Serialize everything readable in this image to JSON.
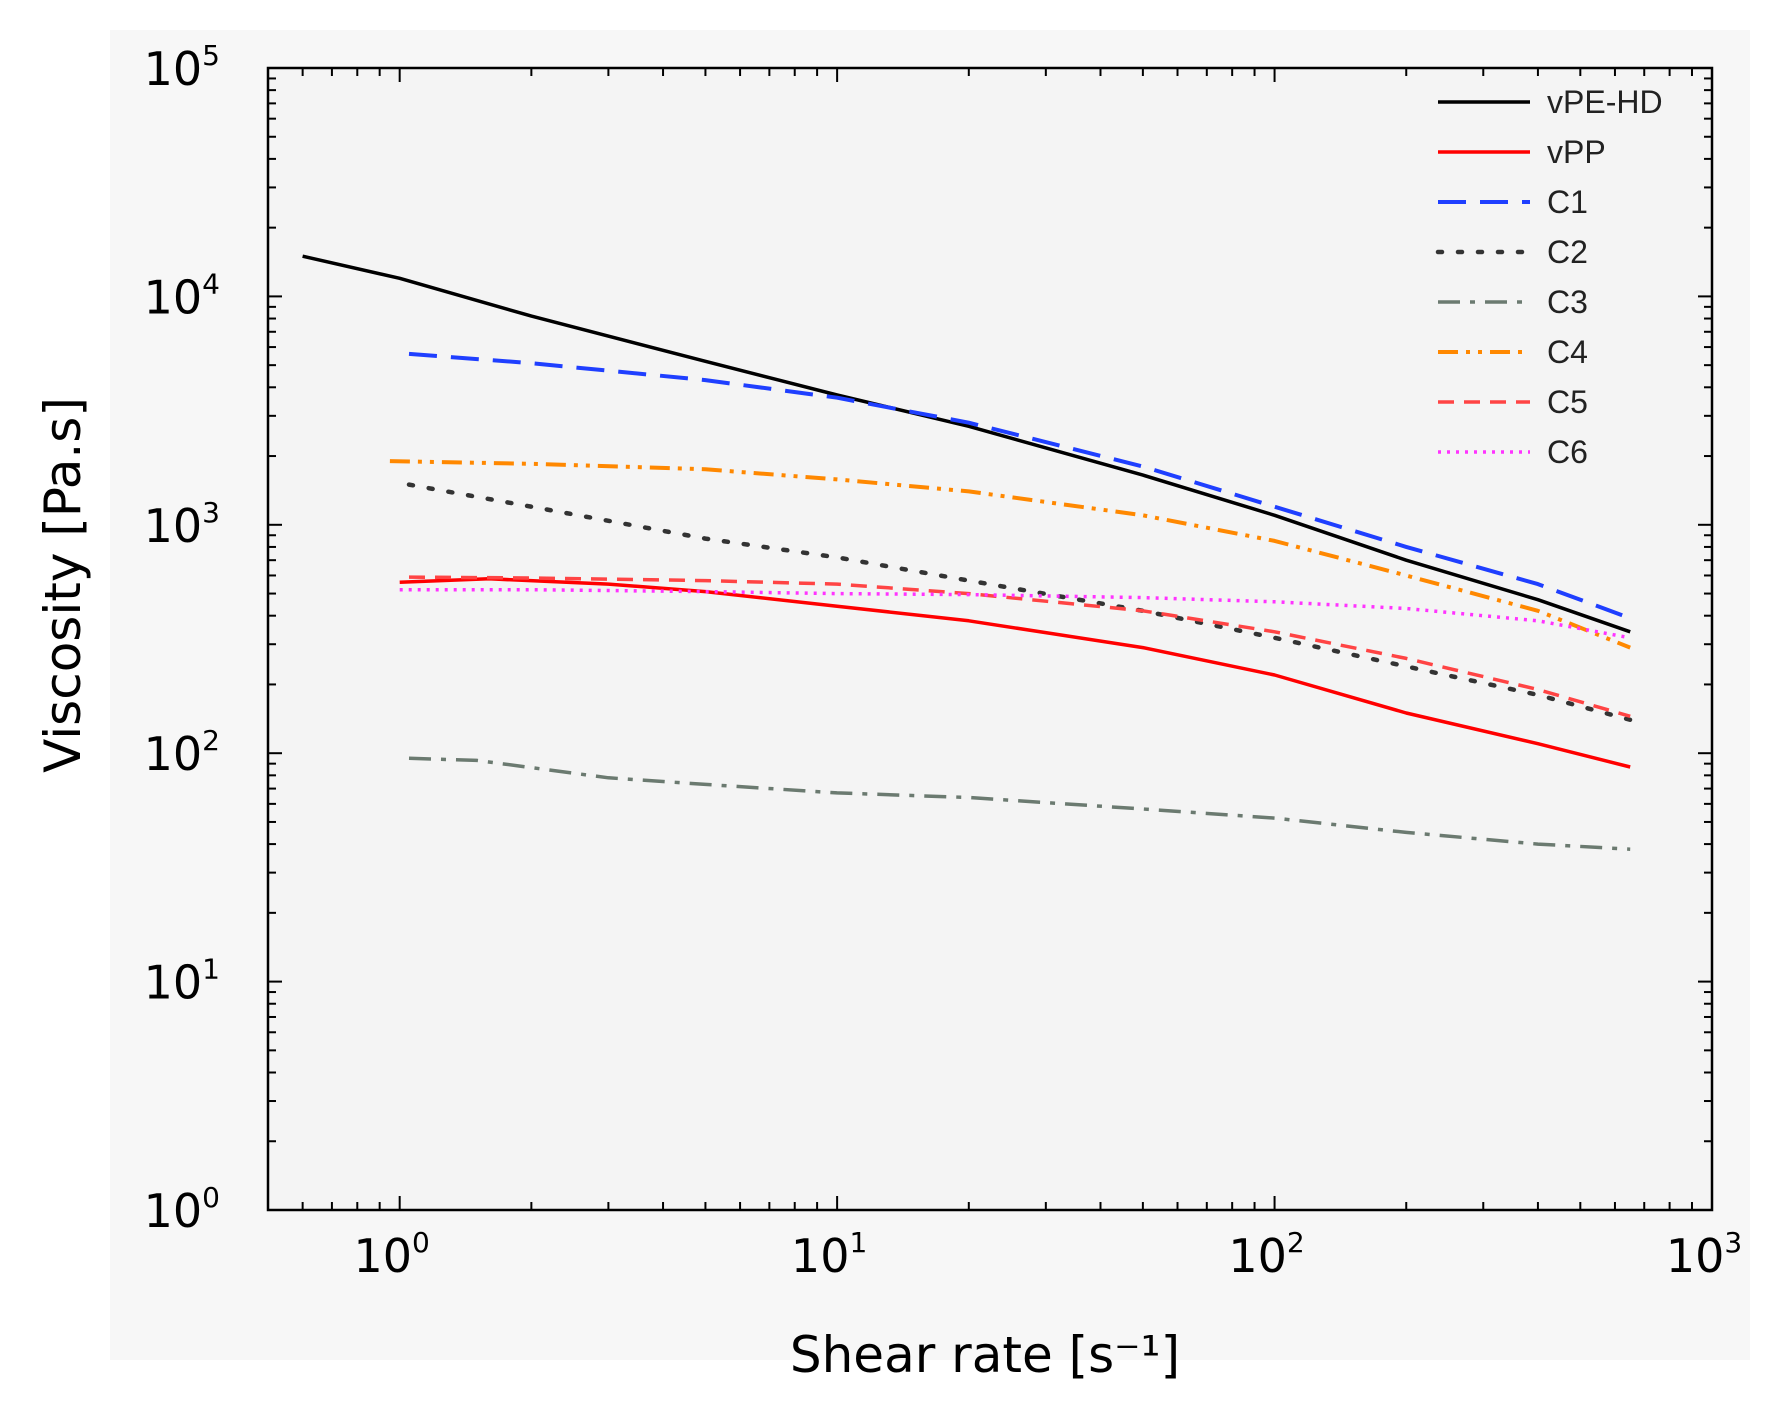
{
  "chart_data": {
    "type": "line",
    "xscale": "log",
    "yscale": "log",
    "xlim": [
      0.5,
      1000
    ],
    "ylim": [
      1,
      100000
    ],
    "xlabel": "Shear rate [s⁻¹]",
    "ylabel": "Viscosity [Pa.s]",
    "x_ticks": [
      {
        "base": "10",
        "exp": "0"
      },
      {
        "base": "10",
        "exp": "1"
      },
      {
        "base": "10",
        "exp": "2"
      },
      {
        "base": "10",
        "exp": "3"
      }
    ],
    "y_ticks": [
      {
        "base": "10",
        "exp": "0"
      },
      {
        "base": "10",
        "exp": "1"
      },
      {
        "base": "10",
        "exp": "2"
      },
      {
        "base": "10",
        "exp": "3"
      },
      {
        "base": "10",
        "exp": "4"
      },
      {
        "base": "10",
        "exp": "5"
      }
    ],
    "legend_position": "top-right",
    "series": [
      {
        "name": "vPE-HD",
        "color": "#000000",
        "style": "solid",
        "points": [
          [
            0.6,
            15000
          ],
          [
            1,
            12000
          ],
          [
            2,
            8200
          ],
          [
            5,
            5200
          ],
          [
            10,
            3700
          ],
          [
            20,
            2700
          ],
          [
            50,
            1650
          ],
          [
            100,
            1100
          ],
          [
            200,
            700
          ],
          [
            400,
            470
          ],
          [
            650,
            340
          ]
        ]
      },
      {
        "name": "vPP",
        "color": "#ff0000",
        "style": "solid",
        "points": [
          [
            1,
            560
          ],
          [
            1.6,
            580
          ],
          [
            3,
            550
          ],
          [
            5,
            510
          ],
          [
            10,
            440
          ],
          [
            20,
            380
          ],
          [
            50,
            290
          ],
          [
            100,
            220
          ],
          [
            200,
            150
          ],
          [
            400,
            110
          ],
          [
            650,
            87
          ]
        ]
      },
      {
        "name": "C1",
        "color": "#1f3fff",
        "style": "dashed",
        "points": [
          [
            1.05,
            5600
          ],
          [
            2,
            5100
          ],
          [
            5,
            4300
          ],
          [
            10,
            3600
          ],
          [
            20,
            2800
          ],
          [
            50,
            1800
          ],
          [
            100,
            1200
          ],
          [
            200,
            800
          ],
          [
            400,
            550
          ],
          [
            650,
            390
          ]
        ]
      },
      {
        "name": "C2",
        "color": "#333333",
        "style": "dotted",
        "points": [
          [
            1.05,
            1500
          ],
          [
            2,
            1200
          ],
          [
            5,
            870
          ],
          [
            10,
            720
          ],
          [
            20,
            570
          ],
          [
            50,
            420
          ],
          [
            100,
            320
          ],
          [
            200,
            240
          ],
          [
            400,
            180
          ],
          [
            650,
            140
          ]
        ]
      },
      {
        "name": "C3",
        "color": "#6b7a70",
        "style": "dashdot",
        "points": [
          [
            1.05,
            95
          ],
          [
            1.5,
            93
          ],
          [
            3,
            78
          ],
          [
            5,
            73
          ],
          [
            10,
            67
          ],
          [
            20,
            64
          ],
          [
            50,
            57
          ],
          [
            100,
            52
          ],
          [
            200,
            45
          ],
          [
            400,
            40
          ],
          [
            650,
            38
          ]
        ]
      },
      {
        "name": "C4",
        "color": "#ff8800",
        "style": "dashdotdot",
        "points": [
          [
            0.95,
            1900
          ],
          [
            2,
            1850
          ],
          [
            5,
            1750
          ],
          [
            10,
            1580
          ],
          [
            20,
            1400
          ],
          [
            50,
            1100
          ],
          [
            100,
            850
          ],
          [
            200,
            600
          ],
          [
            400,
            420
          ],
          [
            650,
            290
          ]
        ]
      },
      {
        "name": "C5",
        "color": "#ff4444",
        "style": "dashed-short",
        "points": [
          [
            1.05,
            590
          ],
          [
            2,
            585
          ],
          [
            5,
            570
          ],
          [
            10,
            550
          ],
          [
            20,
            500
          ],
          [
            50,
            420
          ],
          [
            100,
            340
          ],
          [
            200,
            260
          ],
          [
            400,
            190
          ],
          [
            650,
            145
          ]
        ]
      },
      {
        "name": "C6",
        "color": "#ff33ff",
        "style": "dotted-fine",
        "points": [
          [
            1,
            520
          ],
          [
            2,
            520
          ],
          [
            5,
            510
          ],
          [
            10,
            500
          ],
          [
            20,
            495
          ],
          [
            50,
            480
          ],
          [
            100,
            460
          ],
          [
            200,
            430
          ],
          [
            400,
            380
          ],
          [
            650,
            320
          ]
        ]
      }
    ]
  }
}
